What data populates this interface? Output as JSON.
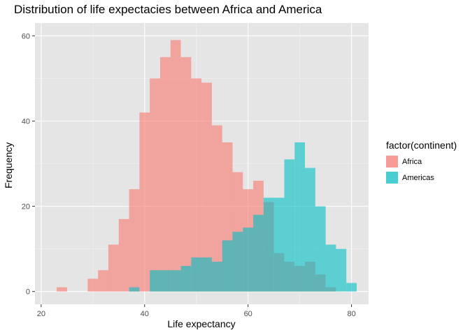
{
  "chart_data": {
    "type": "histogram",
    "title": "Distribution of life expectacies between Africa and America",
    "xlabel": "Life expectancy",
    "ylabel": "Frequency",
    "xlim": [
      18.8,
      83.3
    ],
    "ylim": [
      -3,
      63
    ],
    "x_ticks": [
      20,
      40,
      60,
      80
    ],
    "y_ticks": [
      0,
      20,
      40,
      60
    ],
    "grid": true,
    "legend_position": "right",
    "legend_title": "factor(continent)",
    "bin_width": 2,
    "series": [
      {
        "name": "Africa",
        "color": "#F8766D",
        "bins": [
          {
            "x": 24,
            "count": 1
          },
          {
            "x": 30,
            "count": 3
          },
          {
            "x": 32,
            "count": 5
          },
          {
            "x": 34,
            "count": 11
          },
          {
            "x": 36,
            "count": 17
          },
          {
            "x": 38,
            "count": 24
          },
          {
            "x": 40,
            "count": 42
          },
          {
            "x": 42,
            "count": 50
          },
          {
            "x": 44,
            "count": 55
          },
          {
            "x": 46,
            "count": 59
          },
          {
            "x": 48,
            "count": 55
          },
          {
            "x": 50,
            "count": 50
          },
          {
            "x": 52,
            "count": 49
          },
          {
            "x": 54,
            "count": 39
          },
          {
            "x": 56,
            "count": 35
          },
          {
            "x": 58,
            "count": 28
          },
          {
            "x": 60,
            "count": 24
          },
          {
            "x": 62,
            "count": 26
          },
          {
            "x": 64,
            "count": 21
          },
          {
            "x": 66,
            "count": 9
          },
          {
            "x": 68,
            "count": 7
          },
          {
            "x": 70,
            "count": 6
          },
          {
            "x": 72,
            "count": 7
          },
          {
            "x": 74,
            "count": 4
          },
          {
            "x": 76,
            "count": 1
          }
        ]
      },
      {
        "name": "Americas",
        "color": "#00BFC4",
        "bins": [
          {
            "x": 38,
            "count": 1
          },
          {
            "x": 40,
            "count": 0
          },
          {
            "x": 42,
            "count": 5
          },
          {
            "x": 44,
            "count": 5
          },
          {
            "x": 46,
            "count": 5
          },
          {
            "x": 48,
            "count": 6
          },
          {
            "x": 50,
            "count": 8
          },
          {
            "x": 52,
            "count": 8
          },
          {
            "x": 54,
            "count": 7
          },
          {
            "x": 56,
            "count": 12
          },
          {
            "x": 58,
            "count": 14
          },
          {
            "x": 60,
            "count": 15
          },
          {
            "x": 62,
            "count": 18
          },
          {
            "x": 64,
            "count": 22
          },
          {
            "x": 66,
            "count": 22
          },
          {
            "x": 68,
            "count": 31
          },
          {
            "x": 70,
            "count": 35
          },
          {
            "x": 72,
            "count": 29
          },
          {
            "x": 74,
            "count": 20
          },
          {
            "x": 76,
            "count": 11
          },
          {
            "x": 78,
            "count": 10
          },
          {
            "x": 80,
            "count": 2
          }
        ]
      }
    ]
  }
}
